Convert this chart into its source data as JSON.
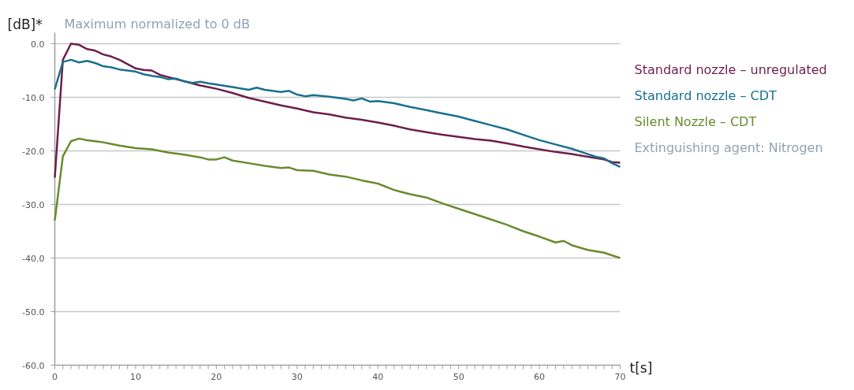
{
  "chart_data": {
    "type": "line",
    "subtitle": "Maximum normalized to 0 dB",
    "xlabel": "t[s]",
    "ylabel": "[dB]*",
    "annotations": [
      "Extinguishing agent: Nitrogen"
    ],
    "xlim": [
      0,
      70
    ],
    "xticks": [
      0,
      10,
      20,
      30,
      40,
      50,
      60,
      70
    ],
    "ylim": [
      -60,
      0
    ],
    "yticks": [
      {
        "value": 0,
        "label": "0.0"
      },
      {
        "value": -10,
        "label": "-10.0"
      },
      {
        "value": -20,
        "label": "-20.0"
      },
      {
        "value": -30,
        "label": "-30.0"
      },
      {
        "value": -40,
        "label": "-40.0"
      },
      {
        "value": -50,
        "label": "-50.0"
      },
      {
        "value": -60,
        "label": "-60.0"
      }
    ],
    "grid": "y",
    "line_style": "solid",
    "marker": "none",
    "series": [
      {
        "name": "Standard nozzle – unregulated",
        "color": "#6e1f4a",
        "x": [
          0,
          1,
          2,
          3,
          4,
          5,
          6,
          7,
          8,
          9,
          10,
          11,
          12,
          13,
          14,
          15,
          16,
          17,
          18,
          19,
          20,
          22,
          24,
          26,
          28,
          30,
          32,
          34,
          36,
          38,
          40,
          42,
          44,
          46,
          48,
          50,
          52,
          54,
          56,
          58,
          60,
          62,
          64,
          66,
          68,
          69,
          70
        ],
        "values": [
          -25,
          -3,
          0,
          -0.2,
          -1,
          -1.3,
          -2,
          -2.4,
          -3,
          -3.8,
          -4.6,
          -4.9,
          -5,
          -5.8,
          -6.2,
          -6.6,
          -7,
          -7.4,
          -7.8,
          -8.1,
          -8.4,
          -9.2,
          -10.1,
          -10.8,
          -11.5,
          -12.1,
          -12.8,
          -13.2,
          -13.8,
          -14.2,
          -14.7,
          -15.3,
          -16,
          -16.5,
          -17,
          -17.4,
          -17.8,
          -18.1,
          -18.6,
          -19.2,
          -19.7,
          -20.2,
          -20.6,
          -21.1,
          -21.6,
          -22.1,
          -22.2
        ]
      },
      {
        "name": "Standard nozzle – CDT",
        "color": "#1a7090",
        "x": [
          0,
          1,
          2,
          3,
          4,
          5,
          6,
          7,
          8,
          9,
          10,
          11,
          12,
          13,
          14,
          15,
          16,
          17,
          18,
          19,
          20,
          22,
          24,
          25,
          26,
          28,
          29,
          30,
          31,
          32,
          34,
          36,
          37,
          38,
          39,
          40,
          42,
          44,
          46,
          48,
          50,
          52,
          54,
          56,
          58,
          60,
          62,
          64,
          66,
          67,
          68,
          69,
          70
        ],
        "values": [
          -8.5,
          -3.4,
          -3,
          -3.5,
          -3.2,
          -3.6,
          -4.2,
          -4.4,
          -4.8,
          -5,
          -5.2,
          -5.7,
          -6,
          -6.2,
          -6.6,
          -6.5,
          -7,
          -7.3,
          -7.1,
          -7.4,
          -7.6,
          -8.1,
          -8.6,
          -8.2,
          -8.6,
          -9,
          -8.8,
          -9.5,
          -9.8,
          -9.6,
          -9.9,
          -10.3,
          -10.6,
          -10.2,
          -10.8,
          -10.7,
          -11.1,
          -11.8,
          -12.4,
          -13,
          -13.6,
          -14.4,
          -15.2,
          -16,
          -17,
          -18,
          -18.8,
          -19.6,
          -20.6,
          -21.1,
          -21.4,
          -22.3,
          -23
        ]
      },
      {
        "name": "Silent Nozzle      – CDT",
        "color": "#6b8a2e",
        "x": [
          0,
          1,
          2,
          3,
          4,
          5,
          6,
          7,
          8,
          10,
          12,
          14,
          16,
          18,
          19,
          20,
          21,
          22,
          24,
          26,
          28,
          29,
          30,
          32,
          34,
          36,
          38,
          40,
          42,
          44,
          46,
          48,
          50,
          52,
          54,
          56,
          58,
          60,
          62,
          63,
          64,
          66,
          68,
          70
        ],
        "values": [
          -33,
          -21,
          -18.2,
          -17.7,
          -18,
          -18.2,
          -18.4,
          -18.7,
          -19,
          -19.5,
          -19.7,
          -20.3,
          -20.7,
          -21.2,
          -21.6,
          -21.6,
          -21.2,
          -21.8,
          -22.3,
          -22.8,
          -23.2,
          -23.1,
          -23.6,
          -23.7,
          -24.4,
          -24.8,
          -25.5,
          -26.1,
          -27.3,
          -28.1,
          -28.7,
          -29.8,
          -30.8,
          -31.8,
          -32.8,
          -33.8,
          -35,
          -36,
          -37.1,
          -36.8,
          -37.6,
          -38.5,
          -39,
          -40
        ]
      }
    ]
  }
}
